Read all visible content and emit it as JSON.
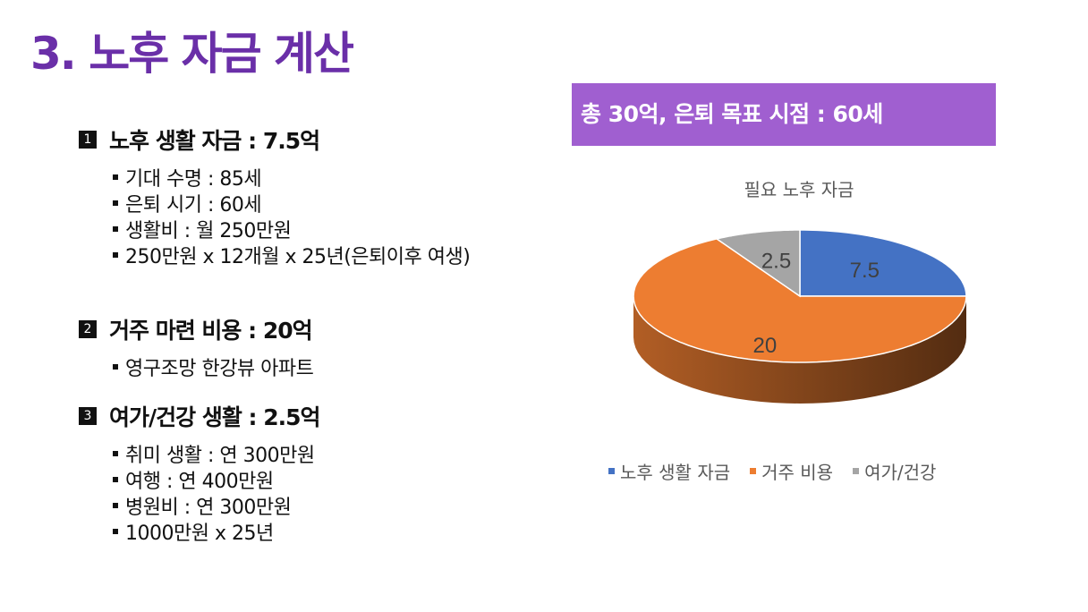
{
  "page_title": "3. 노후 자금 계산",
  "banner": "총 30억, 은퇴 목표 시점  : 60세",
  "sections": [
    {
      "num": "1",
      "heading": "노후 생활 자금 : 7.5억",
      "bullets": [
        "기대 수명 : 85세",
        "은퇴 시기 : 60세",
        "생활비 : 월  250만원",
        "250만원 x 12개월 x 25년(은퇴이후 여생)"
      ]
    },
    {
      "num": "2",
      "heading": "거주 마련 비용 : 20억",
      "bullets": [
        "영구조망 한강뷰 아파트"
      ]
    },
    {
      "num": "3",
      "heading": "여가/건강 생활 : 2.5억",
      "bullets": [
        "취미 생활 : 연 300만원",
        "여행 : 연 400만원",
        "병원비 : 연 300만원",
        "1000만원 x 25년"
      ]
    }
  ],
  "chart_data": {
    "type": "pie",
    "title": "필요 노후 자금",
    "categories": [
      "노후 생활 자금",
      "거주 비용",
      "여가/건강"
    ],
    "values": [
      7.5,
      20,
      2.5
    ],
    "labels": [
      "7.5",
      "20",
      "2.5"
    ],
    "colors": [
      "#4472c4",
      "#ed7d31",
      "#a5a5a5"
    ],
    "legend_position": "bottom"
  }
}
